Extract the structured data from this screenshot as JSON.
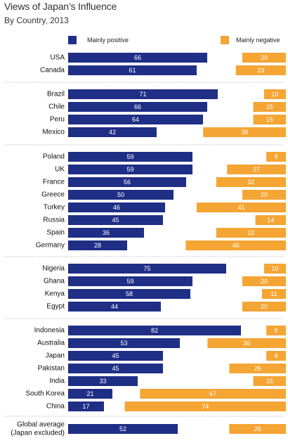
{
  "header": {
    "title": "Views of Japan’s Influence",
    "subtitle": "By Country, 2013"
  },
  "colors": {
    "positive": "#1f2f86",
    "negative": "#f4a533",
    "separator": "#9b9b9b"
  },
  "chart_data": {
    "type": "bar",
    "title": "Views of Japan’s Influence",
    "subtitle": "By Country, 2013",
    "xlabel": "",
    "ylabel": "",
    "legend": "top",
    "series": [
      {
        "name": "Mainly positive",
        "color": "#1f2f86"
      },
      {
        "name": "Mainly negative",
        "color": "#f4a533"
      }
    ],
    "groups": [
      {
        "rows": [
          {
            "label": "USA",
            "positive": 66,
            "negative": 20
          },
          {
            "label": "Canada",
            "positive": 61,
            "negative": 23
          }
        ]
      },
      {
        "rows": [
          {
            "label": "Brazil",
            "positive": 71,
            "negative": 10
          },
          {
            "label": "Chile",
            "positive": 66,
            "negative": 15
          },
          {
            "label": "Peru",
            "positive": 64,
            "negative": 15
          },
          {
            "label": "Mexico",
            "positive": 42,
            "negative": 38
          }
        ]
      },
      {
        "rows": [
          {
            "label": "Poland",
            "positive": 59,
            "negative": 9
          },
          {
            "label": "UK",
            "positive": 59,
            "negative": 27
          },
          {
            "label": "France",
            "positive": 56,
            "negative": 32
          },
          {
            "label": "Greece",
            "positive": 50,
            "negative": 20
          },
          {
            "label": "Turkey",
            "positive": 46,
            "negative": 41
          },
          {
            "label": "Russia",
            "positive": 45,
            "negative": 14
          },
          {
            "label": "Spain",
            "positive": 36,
            "negative": 32
          },
          {
            "label": "Germany",
            "positive": 28,
            "negative": 46
          }
        ]
      },
      {
        "rows": [
          {
            "label": "Nigeria",
            "positive": 75,
            "negative": 10
          },
          {
            "label": "Ghana",
            "positive": 59,
            "negative": 20
          },
          {
            "label": "Kenya",
            "positive": 58,
            "negative": 11
          },
          {
            "label": "Egypt",
            "positive": 44,
            "negative": 20
          }
        ]
      },
      {
        "rows": [
          {
            "label": "Indonesia",
            "positive": 82,
            "negative": 9
          },
          {
            "label": "Australia",
            "positive": 53,
            "negative": 36
          },
          {
            "label": "Japan",
            "positive": 45,
            "negative": 9
          },
          {
            "label": "Pakistan",
            "positive": 45,
            "negative": 26
          },
          {
            "label": "India",
            "positive": 33,
            "negative": 15
          },
          {
            "label": "South Korea",
            "positive": 21,
            "negative": 67
          },
          {
            "label": "China",
            "positive": 17,
            "negative": 74
          }
        ]
      },
      {
        "rows": [
          {
            "label": "Global average",
            "label2": "(Japan excluded)",
            "positive": 52,
            "negative": 26
          }
        ]
      }
    ]
  }
}
